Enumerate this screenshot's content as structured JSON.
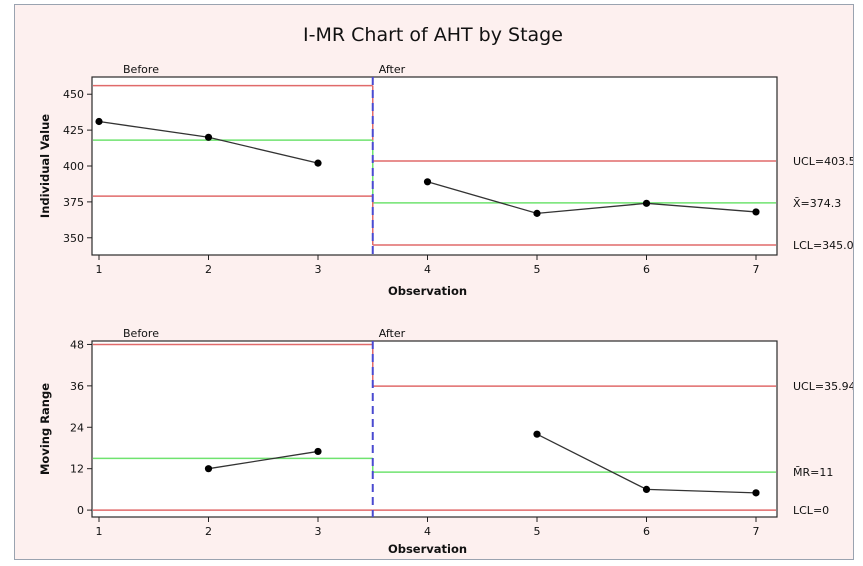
{
  "chart_data": [
    {
      "type": "line",
      "title": "I-MR Chart of AHT by Stage",
      "xlabel": "Observation",
      "ylabel": "Individual Value",
      "x_ticks": [
        1,
        2,
        3,
        4,
        5,
        6,
        7
      ],
      "y_ticks": [
        350,
        375,
        400,
        425,
        450
      ],
      "ylim": [
        338,
        462
      ],
      "stages": [
        {
          "name": "Before",
          "x_range": [
            1,
            3
          ],
          "ucl": 456,
          "center": 418,
          "lcl": 379
        },
        {
          "name": "After",
          "x_range": [
            4,
            7
          ],
          "ucl": 403.5,
          "center": 374.3,
          "lcl": 345.0
        }
      ],
      "series": [
        {
          "x": [
            1,
            2,
            3
          ],
          "y": [
            431,
            420,
            402
          ]
        },
        {
          "x": [
            4,
            5,
            6,
            7
          ],
          "y": [
            389,
            367,
            374,
            368
          ]
        }
      ],
      "stage_split_x": 3.5,
      "reference_labels": [
        {
          "text": "UCL=403.5",
          "value": 403.5
        },
        {
          "text": "X̄=374.3",
          "value": 374.3
        },
        {
          "text": "LCL=345.0",
          "value": 345.0
        }
      ],
      "colors": {
        "limit": "#e06a6a",
        "center": "#6fe36f",
        "series": "#000000",
        "divider": "#4a4ad0"
      }
    },
    {
      "type": "line",
      "title": "",
      "xlabel": "Observation",
      "ylabel": "Moving Range",
      "x_ticks": [
        1,
        2,
        3,
        4,
        5,
        6,
        7
      ],
      "y_ticks": [
        0,
        12,
        24,
        36,
        48
      ],
      "ylim": [
        -2,
        49
      ],
      "stages": [
        {
          "name": "Before",
          "x_range": [
            1,
            3
          ],
          "ucl": 48,
          "center": 15,
          "lcl": 0
        },
        {
          "name": "After",
          "x_range": [
            4,
            7
          ],
          "ucl": 35.94,
          "center": 11,
          "lcl": 0
        }
      ],
      "series": [
        {
          "x": [
            2,
            3
          ],
          "y": [
            12,
            17
          ]
        },
        {
          "x": [
            5,
            6,
            7
          ],
          "y": [
            22,
            6,
            5
          ]
        }
      ],
      "stage_split_x": 3.5,
      "reference_labels": [
        {
          "text": "UCL=35.94",
          "value": 35.94
        },
        {
          "text": "M̄R=11",
          "value": 11
        },
        {
          "text": "LCL=0",
          "value": 0
        }
      ],
      "colors": {
        "limit": "#e06a6a",
        "center": "#6fe36f",
        "series": "#000000",
        "divider": "#4a4ad0"
      }
    }
  ]
}
